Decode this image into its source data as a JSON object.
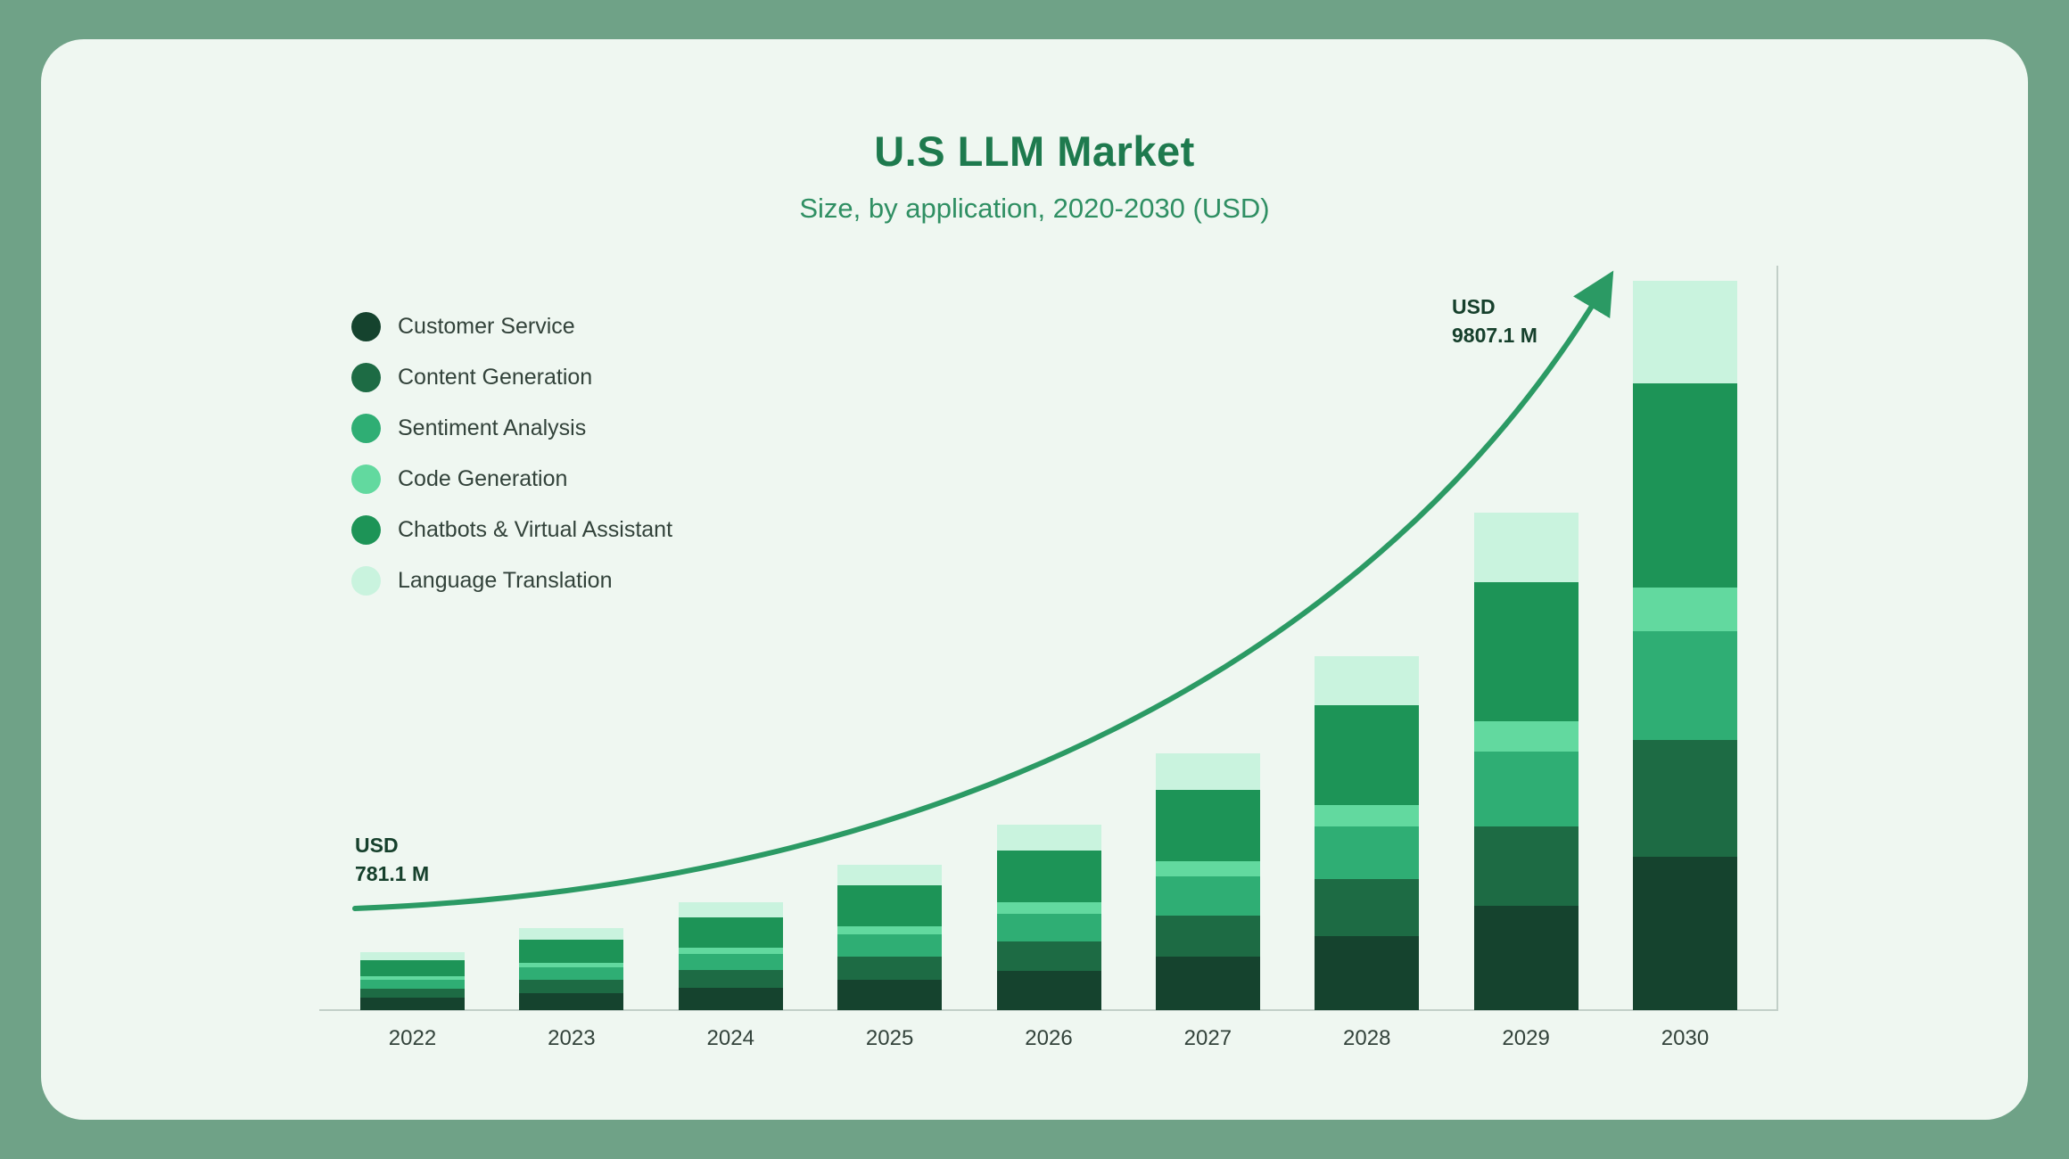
{
  "colors": {
    "background": "#6FA287",
    "card": "#EFF7F1",
    "title": "#1E7A4E",
    "subtitle": "#2F8F63",
    "text": "#32423A",
    "annotation": "#16402C",
    "axis": "#C2CFC8",
    "arrow": "#2B9A64"
  },
  "chart_data": {
    "type": "bar",
    "stacked": true,
    "title": "U.S LLM Market",
    "subtitle": "Size, by application, 2020-2030 (USD)",
    "unit": "USD million",
    "categories": [
      "2022",
      "2023",
      "2024",
      "2025",
      "2026",
      "2027",
      "2028",
      "2029",
      "2030"
    ],
    "series": [
      {
        "name": "Customer Service",
        "color": "#15432E",
        "values": [
          164,
          231,
          305,
          410,
          525,
          725,
          1000,
          1405,
          2060
        ]
      },
      {
        "name": "Content Generation",
        "color": "#1D6B44",
        "values": [
          125,
          176,
          232,
          312,
          400,
          552,
          762,
          1070,
          1569
        ]
      },
      {
        "name": "Sentiment Analysis",
        "color": "#2FAE74",
        "values": [
          117,
          165,
          218,
          292,
          375,
          517,
          714,
          1003,
          1471
        ]
      },
      {
        "name": "Code Generation",
        "color": "#62D99F",
        "values": [
          47,
          66,
          87,
          117,
          150,
          207,
          286,
          401,
          588
        ]
      },
      {
        "name": "Chatbots & Virtual Assistant",
        "color": "#1D9457",
        "values": [
          219,
          308,
          406,
          546,
          700,
          966,
          1333,
          1873,
          2746
        ]
      },
      {
        "name": "Language Translation",
        "color": "#C9F3DE",
        "values": [
          109.1,
          154,
          202,
          273,
          350,
          483,
          665,
          938,
          1373.1
        ]
      }
    ],
    "totals": [
      781.1,
      1100,
      1450,
      1950,
      2500,
      3450,
      4760,
      6690,
      9807.1
    ],
    "ylim": [
      0,
      9807.1
    ],
    "grid": false,
    "legend_position": "upper-left",
    "annotations": [
      {
        "line1": "USD",
        "line2": "781.1 M",
        "category": "2022"
      },
      {
        "line1": "USD",
        "line2": "9807.1 M",
        "category": "2030"
      }
    ]
  }
}
